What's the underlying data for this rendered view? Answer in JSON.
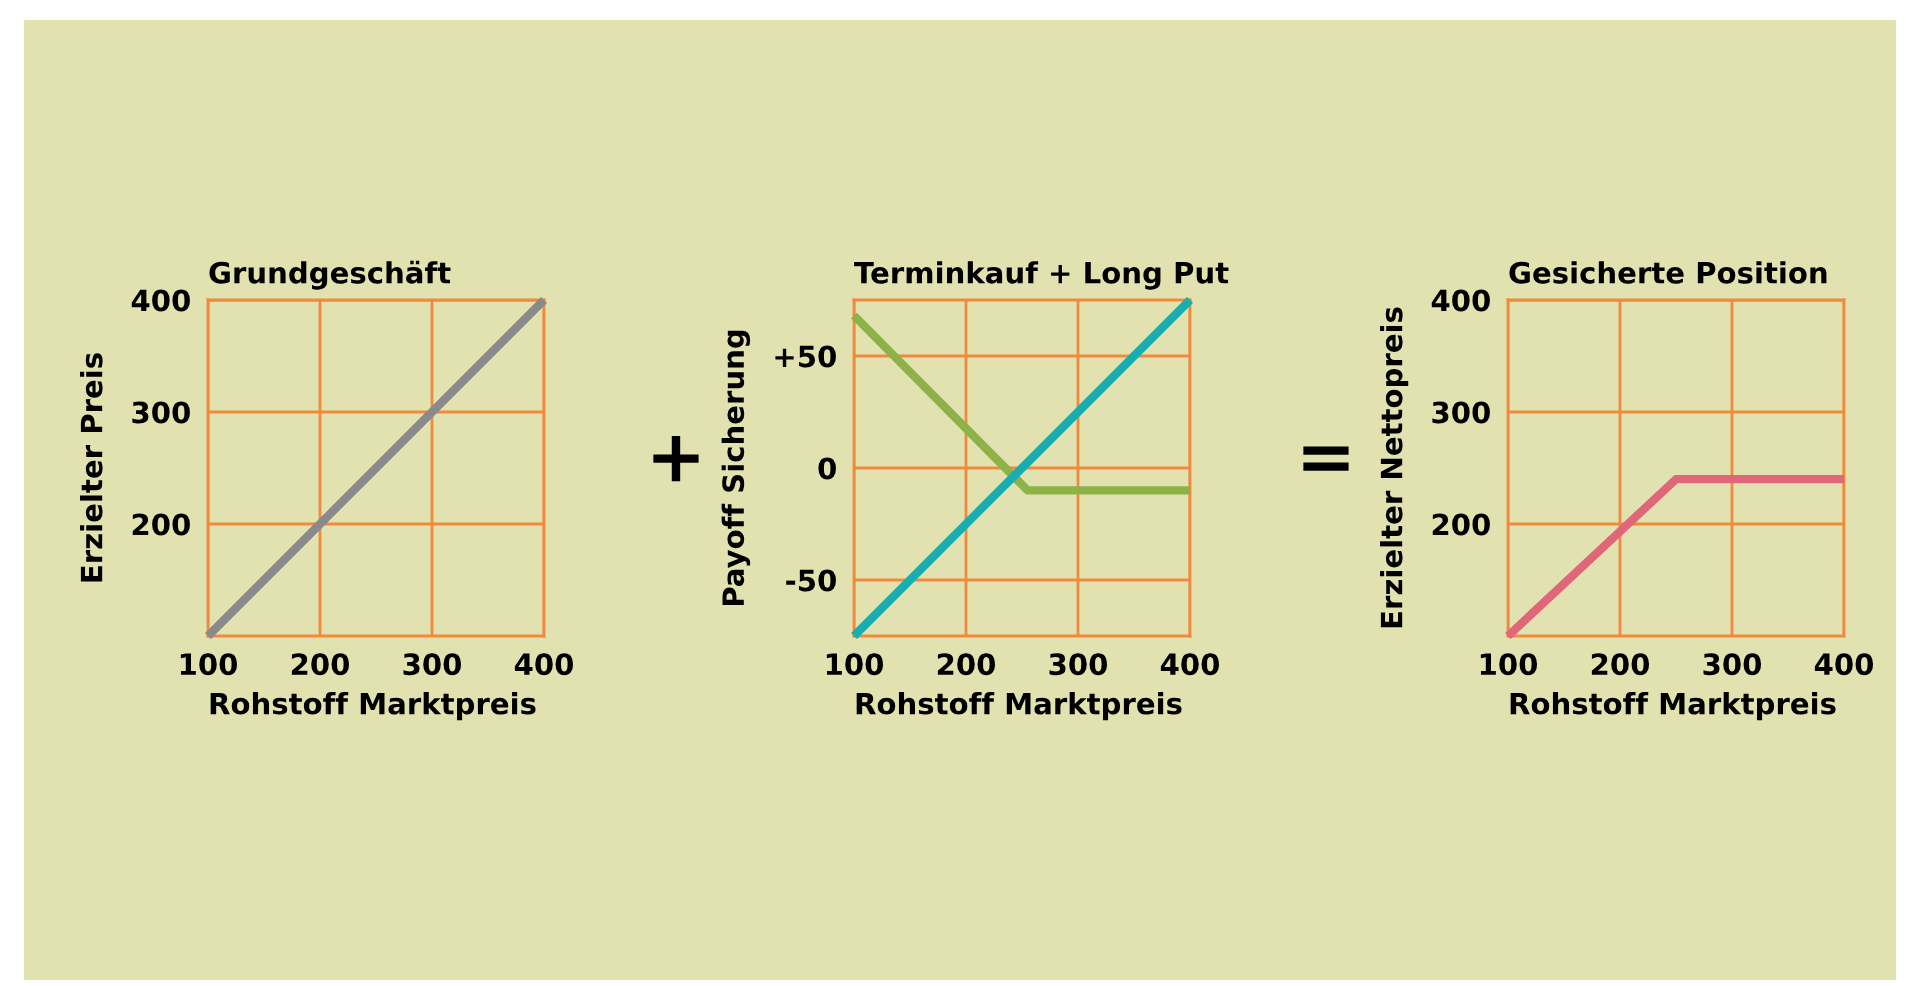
{
  "chart_data": [
    {
      "type": "line",
      "title": "Grundgeschäft",
      "xlabel": "Rohstoff Marktpreis",
      "ylabel": "Erzielter Preis",
      "x": [
        100,
        400
      ],
      "series": [
        {
          "color": "#8a8a8a",
          "values": [
            100,
            400
          ]
        }
      ],
      "xlim": [
        100,
        400
      ],
      "ylim": [
        100,
        400
      ],
      "xticks": [
        100,
        200,
        300,
        400
      ],
      "yticks": [
        200,
        300,
        400
      ],
      "grid": true,
      "marker": "none",
      "line_style": "solid",
      "annotations": [
        "+"
      ]
    },
    {
      "type": "line",
      "title": "Terminkauf + Long Put",
      "xlabel": "Rohstoff Marktpreis",
      "ylabel": "Payoff Sicherung",
      "series": [
        {
          "color": "#8db348",
          "x": [
            100,
            255,
            400
          ],
          "values": [
            68,
            -10,
            -10
          ]
        },
        {
          "color": "#17aeb2",
          "x": [
            100,
            400
          ],
          "values": [
            -75,
            75
          ]
        }
      ],
      "xlim": [
        100,
        400
      ],
      "ylim": [
        -75,
        75
      ],
      "xticks": [
        100,
        200,
        300,
        400
      ],
      "yticks": [
        {
          "value": 50,
          "label": "+50"
        },
        0,
        -50
      ],
      "grid": true,
      "marker": "none",
      "line_style": "solid",
      "annotations": [
        "="
      ]
    },
    {
      "type": "line",
      "title": "Gesicherte Position",
      "xlabel": "Rohstoff Marktpreis",
      "ylabel": "Erzielter Nettopreis",
      "x": [
        100,
        250,
        400
      ],
      "series": [
        {
          "color": "#e0667a",
          "values": [
            100,
            240,
            240
          ]
        }
      ],
      "xlim": [
        100,
        400
      ],
      "ylim": [
        100,
        400
      ],
      "xticks": [
        100,
        200,
        300,
        400
      ],
      "yticks": [
        200,
        300,
        400
      ],
      "grid": true,
      "marker": "none",
      "line_style": "solid"
    }
  ]
}
